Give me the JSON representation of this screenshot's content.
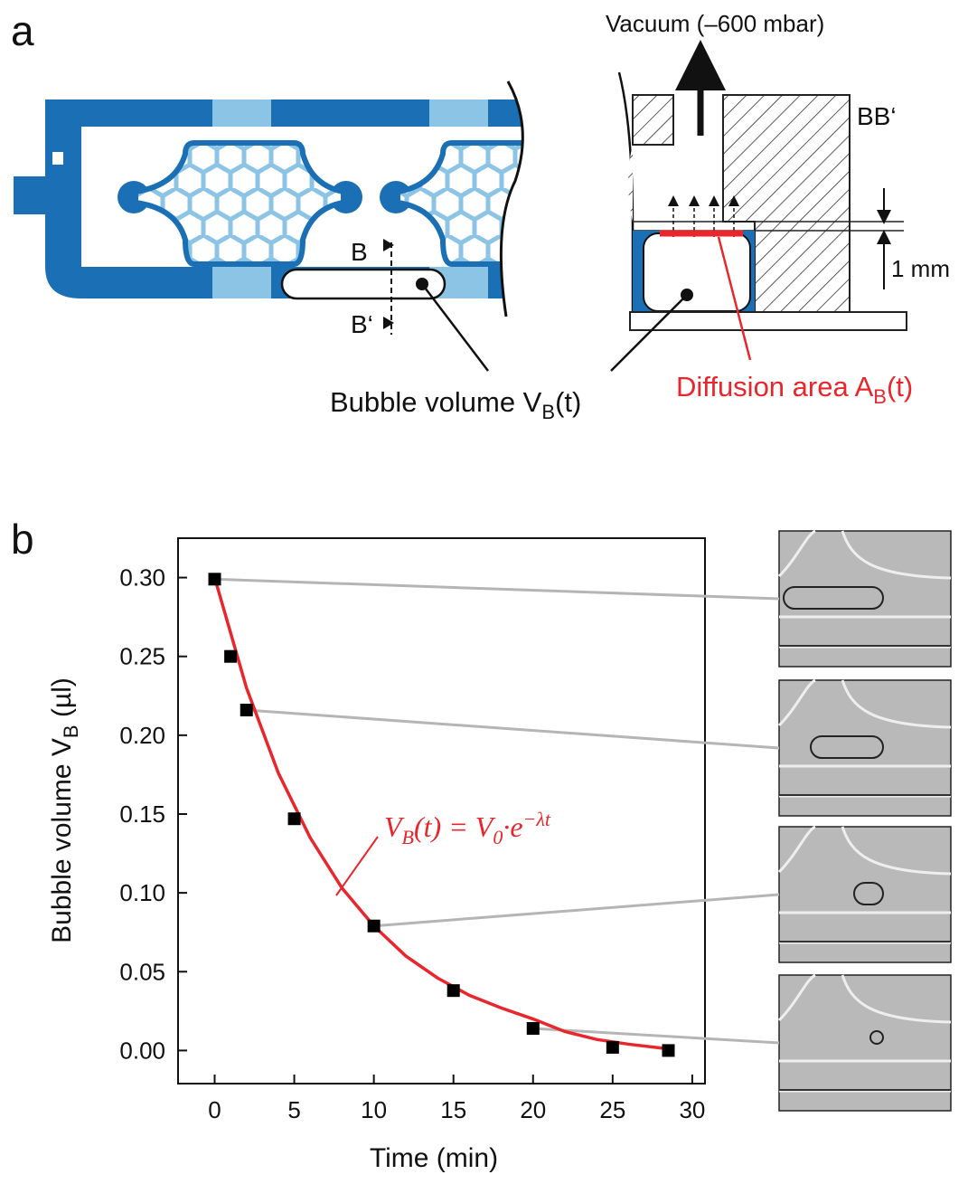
{
  "panel_a": {
    "label": "a",
    "vacuum": "Vacuum (–600 mbar)",
    "section": "BB‘",
    "cut_top": "B",
    "cut_bottom": "B‘",
    "scale": "1 mm",
    "bubble_label": {
      "text": "Bubble volume V",
      "sub": "B",
      "tail": "(t)"
    },
    "diffusion_label": {
      "text": "Diffusion area A",
      "sub": "B",
      "tail": "(t)"
    }
  },
  "chart_data": {
    "type": "scatter",
    "panel_label": "b",
    "x_label": "Time (min)",
    "y_label": {
      "text": "Bubble volume V",
      "sub": "B",
      "tail": " (µl)"
    },
    "annotation": [
      "V",
      "B",
      "(t) = V",
      "0",
      "·e",
      "−λt"
    ],
    "annotation_color": "#e8262c",
    "xlim": [
      -2.3,
      30.8
    ],
    "ylim": [
      -0.021,
      0.325
    ],
    "xticks": [
      0,
      5,
      10,
      15,
      20,
      25,
      30
    ],
    "yticks": [
      {
        "value": 0,
        "label": "0.00"
      },
      0.05,
      {
        "value": 0.1,
        "label": "0.10"
      },
      0.15,
      {
        "value": 0.2,
        "label": "0.20"
      },
      0.25,
      {
        "value": 0.3,
        "label": "0.30"
      }
    ],
    "series": [
      {
        "style": "line",
        "color": "#e8262c",
        "x": [
          0,
          2,
          4,
          6,
          8,
          10,
          12,
          14,
          16,
          18,
          20,
          22,
          24,
          26,
          28.5
        ],
        "values": [
          0.3,
          0.23,
          0.176,
          0.135,
          0.103,
          0.079,
          0.06,
          0.046,
          0.035,
          0.027,
          0.02,
          0.012,
          0.007,
          0.004,
          0.001
        ]
      },
      {
        "style": "marker",
        "color": "#000000",
        "x": [
          0,
          1,
          2,
          5,
          10,
          15,
          20,
          25,
          28.5
        ],
        "values": [
          0.299,
          0.25,
          0.216,
          0.147,
          0.079,
          0.038,
          0.014,
          0.002,
          0.0
        ]
      }
    ]
  }
}
